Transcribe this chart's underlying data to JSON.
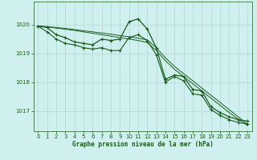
{
  "title": "Graphe pression niveau de la mer (hPa)",
  "bg_color": "#cff0ee",
  "grid_color": "#b0d8d0",
  "line_color": "#1a5c1a",
  "marker_color": "#1a5c1a",
  "xlim": [
    -0.5,
    23.5
  ],
  "ylim": [
    1016.3,
    1020.8
  ],
  "yticks": [
    1017,
    1018,
    1019,
    1020
  ],
  "xticks": [
    0,
    1,
    2,
    3,
    4,
    5,
    6,
    7,
    8,
    9,
    10,
    11,
    12,
    13,
    14,
    15,
    16,
    17,
    18,
    19,
    20,
    21,
    22,
    23
  ],
  "series1_x": [
    0,
    1,
    2,
    3,
    4,
    5,
    6,
    7,
    8,
    9,
    10,
    11,
    12,
    13,
    14,
    15,
    16,
    17,
    18,
    19,
    20,
    21,
    22,
    23
  ],
  "series1_y": [
    1019.95,
    1019.9,
    1019.65,
    1019.55,
    1019.4,
    1019.35,
    1019.3,
    1019.5,
    1019.45,
    1019.5,
    1020.1,
    1020.2,
    1019.85,
    1019.2,
    1018.1,
    1018.25,
    1018.2,
    1017.75,
    1017.7,
    1017.15,
    1016.95,
    1016.8,
    1016.7,
    1016.65
  ],
  "series2_x": [
    0,
    1,
    2,
    3,
    4,
    5,
    6,
    7,
    8,
    9,
    10,
    11,
    12,
    13,
    14,
    15,
    16,
    17,
    18,
    19,
    20,
    21,
    22,
    23
  ],
  "series2_y": [
    1019.95,
    1019.75,
    1019.5,
    1019.35,
    1019.3,
    1019.2,
    1019.15,
    1019.2,
    1019.1,
    1019.1,
    1019.55,
    1019.65,
    1019.45,
    1018.95,
    1018.0,
    1018.2,
    1018.05,
    1017.6,
    1017.55,
    1017.05,
    1016.85,
    1016.7,
    1016.6,
    1016.55
  ],
  "series3_x": [
    0,
    1,
    2,
    3,
    4,
    5,
    6,
    7,
    8,
    9,
    10,
    11,
    12,
    13,
    14,
    15,
    16,
    17,
    18,
    19,
    20,
    21,
    22,
    23
  ],
  "series3_y": [
    1019.95,
    1019.92,
    1019.88,
    1019.84,
    1019.8,
    1019.75,
    1019.7,
    1019.65,
    1019.6,
    1019.55,
    1019.5,
    1019.45,
    1019.38,
    1019.1,
    1018.75,
    1018.45,
    1018.2,
    1017.95,
    1017.7,
    1017.45,
    1017.2,
    1016.95,
    1016.72,
    1016.5
  ],
  "series4_x": [
    0,
    1,
    2,
    3,
    4,
    5,
    6,
    7,
    8,
    9,
    10,
    11,
    12,
    13,
    14,
    15,
    16,
    17,
    18,
    19,
    20,
    21,
    22,
    23
  ],
  "series4_y": [
    1019.95,
    1019.93,
    1019.9,
    1019.87,
    1019.83,
    1019.79,
    1019.75,
    1019.71,
    1019.67,
    1019.62,
    1019.58,
    1019.53,
    1019.47,
    1019.2,
    1018.85,
    1018.55,
    1018.3,
    1018.05,
    1017.8,
    1017.55,
    1017.3,
    1017.05,
    1016.8,
    1016.55
  ]
}
